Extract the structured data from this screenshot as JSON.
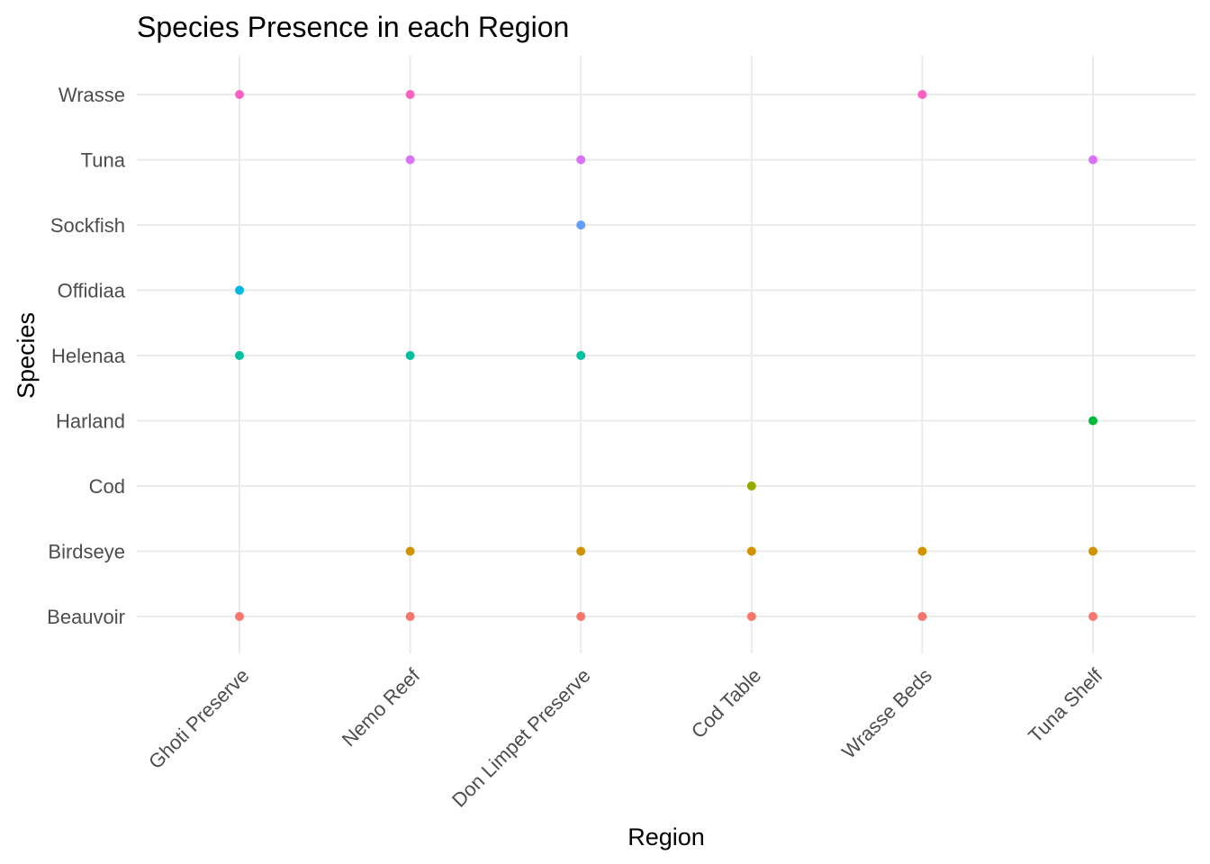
{
  "chart_data": {
    "type": "scatter",
    "title": "Species Presence in each Region",
    "xlabel": "Region",
    "ylabel": "Species",
    "categories_x": [
      "Ghoti Preserve",
      "Nemo Reef",
      "Don Limpet Preserve",
      "Cod Table",
      "Wrasse Beds",
      "Tuna Shelf"
    ],
    "categories_y": [
      "Beauvoir",
      "Birdseye",
      "Cod",
      "Harland",
      "Helenaa",
      "Offidiaa",
      "Sockfish",
      "Tuna",
      "Wrasse"
    ],
    "grid": true,
    "legend": "none",
    "colors": {
      "Beauvoir": "#F8766D",
      "Birdseye": "#D39200",
      "Cod": "#93AA00",
      "Harland": "#00BA38",
      "Helenaa": "#00C19F",
      "Offidiaa": "#00B9E3",
      "Sockfish": "#619CFF",
      "Tuna": "#DB72FB",
      "Wrasse": "#FF61C3"
    },
    "points": [
      {
        "x": "Ghoti Preserve",
        "y": "Wrasse"
      },
      {
        "x": "Nemo Reef",
        "y": "Wrasse"
      },
      {
        "x": "Wrasse Beds",
        "y": "Wrasse"
      },
      {
        "x": "Nemo Reef",
        "y": "Tuna"
      },
      {
        "x": "Don Limpet Preserve",
        "y": "Tuna"
      },
      {
        "x": "Tuna Shelf",
        "y": "Tuna"
      },
      {
        "x": "Don Limpet Preserve",
        "y": "Sockfish"
      },
      {
        "x": "Ghoti Preserve",
        "y": "Offidiaa"
      },
      {
        "x": "Ghoti Preserve",
        "y": "Helenaa"
      },
      {
        "x": "Nemo Reef",
        "y": "Helenaa"
      },
      {
        "x": "Don Limpet Preserve",
        "y": "Helenaa"
      },
      {
        "x": "Tuna Shelf",
        "y": "Harland"
      },
      {
        "x": "Cod Table",
        "y": "Cod"
      },
      {
        "x": "Nemo Reef",
        "y": "Birdseye"
      },
      {
        "x": "Don Limpet Preserve",
        "y": "Birdseye"
      },
      {
        "x": "Cod Table",
        "y": "Birdseye"
      },
      {
        "x": "Wrasse Beds",
        "y": "Birdseye"
      },
      {
        "x": "Tuna Shelf",
        "y": "Birdseye"
      },
      {
        "x": "Ghoti Preserve",
        "y": "Beauvoir"
      },
      {
        "x": "Nemo Reef",
        "y": "Beauvoir"
      },
      {
        "x": "Don Limpet Preserve",
        "y": "Beauvoir"
      },
      {
        "x": "Cod Table",
        "y": "Beauvoir"
      },
      {
        "x": "Wrasse Beds",
        "y": "Beauvoir"
      },
      {
        "x": "Tuna Shelf",
        "y": "Beauvoir"
      }
    ]
  }
}
